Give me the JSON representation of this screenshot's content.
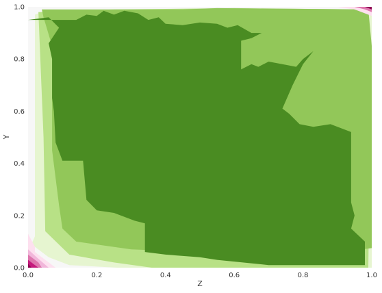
{
  "chart_data": {
    "type": "contourf",
    "colormap": "PiYG",
    "xlabel": "Z",
    "ylabel": "Y",
    "xlim": [
      0.0,
      1.0
    ],
    "ylim": [
      0.0,
      1.0
    ],
    "xticks": [
      "0.0",
      "0.2",
      "0.4",
      "0.6",
      "0.8",
      "1.0"
    ],
    "yticks": [
      "0.0",
      "0.2",
      "0.4",
      "0.6",
      "0.8",
      "1.0"
    ],
    "grid": false,
    "levels": [
      {
        "level": 1,
        "color": "#8e0152"
      },
      {
        "level": 2,
        "color": "#c51b7d"
      },
      {
        "level": 3,
        "color": "#de77ae"
      },
      {
        "level": 4,
        "color": "#f1b6da"
      },
      {
        "level": 5,
        "color": "#fde0ef"
      },
      {
        "level": 6,
        "color": "#f7f7f7"
      },
      {
        "level": 7,
        "color": "#e6f5d0"
      },
      {
        "level": 8,
        "color": "#b8e186"
      },
      {
        "level": 9,
        "color": "#92c759"
      },
      {
        "level": 10,
        "color": "#4a8c22"
      }
    ],
    "regions": [
      {
        "level": 6,
        "points": [
          [
            0,
            0
          ],
          [
            1,
            0
          ],
          [
            1,
            1
          ],
          [
            0,
            1
          ]
        ]
      },
      {
        "level": 7,
        "points": [
          [
            0.01,
            0.09
          ],
          [
            0.02,
            0.12
          ],
          [
            0.02,
            0.97
          ],
          [
            0.05,
            0.985
          ],
          [
            0.41,
            0.99
          ],
          [
            0.97,
            0.99
          ],
          [
            1.0,
            0.985
          ],
          [
            1.0,
            0.0
          ],
          [
            0.26,
            0.0
          ],
          [
            0.12,
            0.01
          ],
          [
            0.06,
            0.04
          ]
        ]
      },
      {
        "level": 8,
        "points": [
          [
            0.05,
            0.14
          ],
          [
            0.045,
            0.5
          ],
          [
            0.03,
            0.98
          ],
          [
            0.25,
            0.99
          ],
          [
            0.6,
            0.995
          ],
          [
            0.96,
            0.99
          ],
          [
            0.99,
            0.97
          ],
          [
            0.995,
            0.5
          ],
          [
            0.99,
            0.0
          ],
          [
            0.36,
            0.0
          ],
          [
            0.25,
            0.02
          ],
          [
            0.12,
            0.05
          ]
        ]
      },
      {
        "level": 9,
        "points": [
          [
            0.045,
            0.96
          ],
          [
            0.07,
            0.85
          ],
          [
            0.07,
            0.45
          ],
          [
            0.09,
            0.24
          ],
          [
            0.1,
            0.15
          ],
          [
            0.14,
            0.1
          ],
          [
            0.3,
            0.07
          ],
          [
            0.5,
            0.06
          ],
          [
            0.6,
            0.055
          ],
          [
            0.86,
            0.05
          ],
          [
            1.0,
            0.075
          ],
          [
            1.0,
            0.85
          ],
          [
            0.99,
            0.99
          ],
          [
            0.55,
            0.995
          ],
          [
            0.45,
            0.99
          ],
          [
            0.04,
            0.99
          ]
        ]
      },
      {
        "level": 10,
        "points": [
          [
            0.0,
            0.95
          ],
          [
            0.14,
            0.95
          ],
          [
            0.17,
            0.97
          ],
          [
            0.2,
            0.965
          ],
          [
            0.22,
            0.985
          ],
          [
            0.25,
            0.97
          ],
          [
            0.28,
            0.985
          ],
          [
            0.32,
            0.975
          ],
          [
            0.35,
            0.95
          ],
          [
            0.38,
            0.96
          ],
          [
            0.4,
            0.935
          ],
          [
            0.45,
            0.93
          ],
          [
            0.5,
            0.94
          ],
          [
            0.55,
            0.935
          ],
          [
            0.58,
            0.92
          ],
          [
            0.61,
            0.93
          ],
          [
            0.65,
            0.9
          ],
          [
            0.68,
            0.9
          ],
          [
            0.65,
            0.88
          ],
          [
            0.62,
            0.87
          ],
          [
            0.62,
            0.76
          ],
          [
            0.65,
            0.78
          ],
          [
            0.67,
            0.77
          ],
          [
            0.7,
            0.79
          ],
          [
            0.74,
            0.78
          ],
          [
            0.78,
            0.77
          ],
          [
            0.8,
            0.8
          ],
          [
            0.83,
            0.83
          ],
          [
            0.8,
            0.78
          ],
          [
            0.77,
            0.7
          ],
          [
            0.74,
            0.61
          ],
          [
            0.76,
            0.59
          ],
          [
            0.79,
            0.55
          ],
          [
            0.83,
            0.54
          ],
          [
            0.88,
            0.55
          ],
          [
            0.94,
            0.52
          ],
          [
            0.94,
            0.25
          ],
          [
            0.95,
            0.2
          ],
          [
            0.94,
            0.15
          ],
          [
            0.98,
            0.1
          ],
          [
            0.98,
            0.01
          ],
          [
            0.7,
            0.01
          ],
          [
            0.55,
            0.03
          ],
          [
            0.5,
            0.04
          ],
          [
            0.4,
            0.05
          ],
          [
            0.34,
            0.06
          ],
          [
            0.34,
            0.14
          ],
          [
            0.34,
            0.17
          ],
          [
            0.31,
            0.18
          ],
          [
            0.25,
            0.21
          ],
          [
            0.2,
            0.22
          ],
          [
            0.17,
            0.26
          ],
          [
            0.16,
            0.41
          ],
          [
            0.1,
            0.41
          ],
          [
            0.08,
            0.48
          ],
          [
            0.075,
            0.6
          ],
          [
            0.07,
            0.65
          ],
          [
            0.07,
            0.8
          ],
          [
            0.06,
            0.86
          ],
          [
            0.09,
            0.92
          ],
          [
            0.06,
            0.96
          ]
        ]
      },
      {
        "level": 5,
        "points": [
          [
            0.0,
            0.13
          ],
          [
            0.02,
            0.08
          ],
          [
            0.02,
            0.06
          ],
          [
            0.08,
            0.0
          ],
          [
            0.0,
            0.0
          ]
        ]
      },
      {
        "level": 4,
        "points": [
          [
            0.0,
            0.07
          ],
          [
            0.025,
            0.04
          ],
          [
            0.06,
            0.0
          ],
          [
            0.0,
            0.0
          ]
        ]
      },
      {
        "level": 3,
        "points": [
          [
            0.0,
            0.05
          ],
          [
            0.03,
            0.02
          ],
          [
            0.04,
            0.0
          ],
          [
            0.0,
            0.0
          ]
        ]
      },
      {
        "level": 2,
        "points": [
          [
            0.0,
            0.03
          ],
          [
            0.02,
            0.01
          ],
          [
            0.03,
            0.0
          ],
          [
            0.0,
            0.0
          ]
        ]
      },
      {
        "level": 1,
        "points": [
          [
            0.0,
            0.015
          ],
          [
            0.01,
            0.0
          ],
          [
            0.0,
            0.0
          ]
        ]
      },
      {
        "level": 5,
        "points": [
          [
            0.9,
            1.0
          ],
          [
            0.95,
            0.99
          ],
          [
            1.0,
            0.965
          ],
          [
            1.0,
            1.0
          ]
        ]
      },
      {
        "level": 3,
        "points": [
          [
            0.95,
            1.0
          ],
          [
            0.98,
            0.99
          ],
          [
            1.0,
            0.98
          ],
          [
            1.0,
            1.0
          ]
        ]
      },
      {
        "level": 1,
        "points": [
          [
            0.98,
            1.0
          ],
          [
            1.0,
            0.99
          ],
          [
            1.0,
            1.0
          ]
        ]
      }
    ]
  }
}
